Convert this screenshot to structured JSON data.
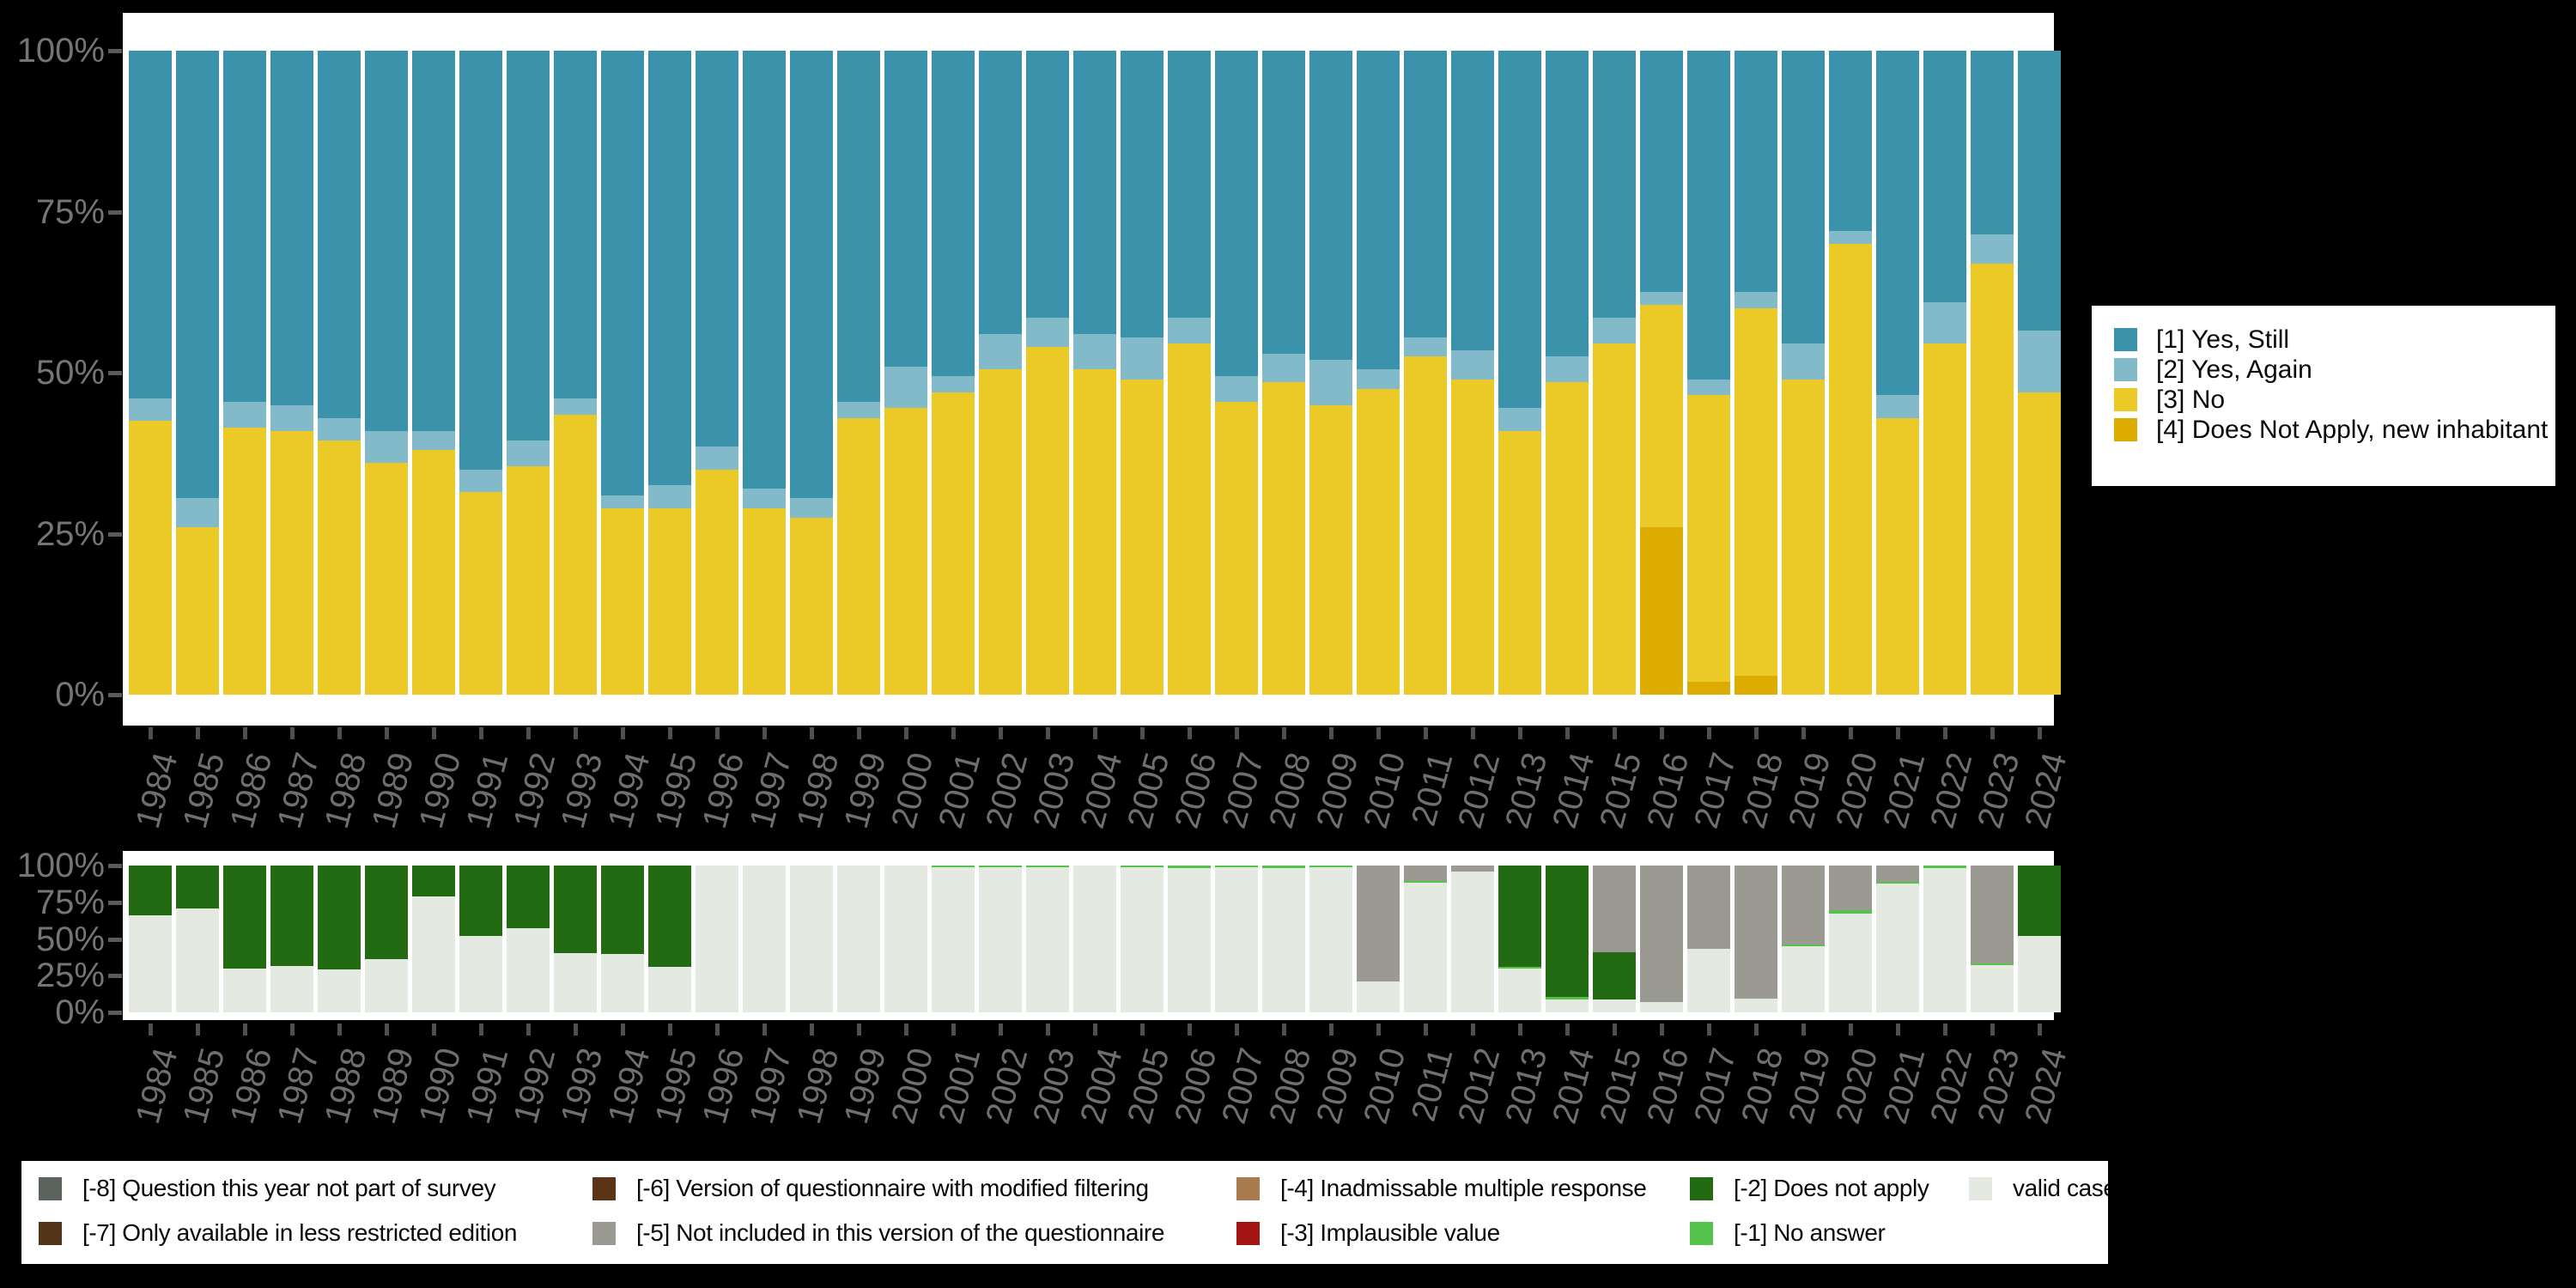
{
  "page": {
    "background": "#000000",
    "panel_background": "#ffffff"
  },
  "axis": {
    "y_tick_labels": [
      "0%",
      "25%",
      "50%",
      "75%",
      "100%"
    ],
    "y_tick_values": [
      0,
      25,
      50,
      75,
      100
    ],
    "tick_color": "#4f4f4f",
    "label_color": "#757575"
  },
  "chart_data": [
    {
      "type": "bar",
      "stacked": true,
      "title": "",
      "xlabel": "",
      "ylabel": "",
      "ylim": [
        0,
        100
      ],
      "grid": false,
      "legend_position": "right",
      "categories": [
        1984,
        1985,
        1986,
        1987,
        1988,
        1989,
        1990,
        1991,
        1992,
        1993,
        1994,
        1995,
        1996,
        1997,
        1998,
        1999,
        2000,
        2001,
        2002,
        2003,
        2004,
        2005,
        2006,
        2007,
        2008,
        2009,
        2010,
        2011,
        2012,
        2013,
        2014,
        2015,
        2016,
        2017,
        2018,
        2019,
        2020,
        2021,
        2022,
        2023,
        2024
      ],
      "series": [
        {
          "key": "does_not_apply_new",
          "name": "[4] Does Not Apply, new inhabitant",
          "color": "#DCAD00",
          "values": [
            0,
            0,
            0,
            0,
            0,
            0,
            0,
            0,
            0,
            0,
            0,
            0,
            0,
            0,
            0,
            0,
            0,
            0,
            0,
            0,
            0,
            0,
            0,
            0,
            0,
            0,
            0,
            0,
            0,
            0,
            0,
            0,
            26,
            2,
            3,
            0,
            0,
            0,
            0,
            0,
            0
          ]
        },
        {
          "key": "no",
          "name": "[3] No",
          "color": "#EBC927",
          "values": [
            42.5,
            26,
            41.5,
            41,
            39.5,
            36,
            38,
            31.5,
            35.5,
            43.5,
            29,
            29,
            35,
            29,
            27.5,
            43,
            44.5,
            47,
            50.5,
            54,
            50.5,
            49,
            54.5,
            45.5,
            48.5,
            45,
            47.5,
            52.5,
            49,
            41,
            48.5,
            54.5,
            34.5,
            44.5,
            57,
            49,
            70,
            43,
            54.5,
            67,
            47
          ]
        },
        {
          "key": "yes_again",
          "name": "[2] Yes, Again",
          "color": "#82BACA",
          "values": [
            3.5,
            4.5,
            4,
            4,
            3.5,
            5,
            3,
            3.5,
            4,
            2.5,
            2,
            3.5,
            3.5,
            3,
            3,
            2.5,
            6.5,
            2.5,
            5.5,
            4.5,
            5.5,
            6.5,
            4,
            4,
            4.5,
            7,
            3,
            3,
            4.5,
            3.5,
            4,
            4,
            2,
            2.5,
            2.5,
            5.5,
            2,
            3.5,
            6.5,
            4.5,
            9.5
          ]
        },
        {
          "key": "yes_still",
          "name": "[1] Yes, Still",
          "color": "#3B93AB",
          "values": [
            54,
            69.5,
            54.5,
            55,
            57,
            59,
            59,
            65,
            60.5,
            54,
            69,
            67.5,
            61.5,
            68,
            69.5,
            54.5,
            49,
            50.5,
            44,
            41.5,
            44,
            44.5,
            41.5,
            50.5,
            47,
            48,
            49.5,
            44.5,
            46.5,
            55.5,
            47.5,
            41.5,
            37.5,
            51,
            37.5,
            45.5,
            28,
            53.5,
            39,
            28.5,
            43.5
          ]
        }
      ],
      "legend": [
        {
          "label": "[1] Yes, Still",
          "color": "#3B93AB"
        },
        {
          "label": "[2] Yes, Again",
          "color": "#82BACA"
        },
        {
          "label": "[3] No",
          "color": "#EBC927"
        },
        {
          "label": "[4] Does Not Apply, new inhabitant",
          "color": "#DCAD00"
        }
      ]
    },
    {
      "type": "bar",
      "stacked": true,
      "title": "",
      "xlabel": "",
      "ylabel": "",
      "ylim": [
        0,
        100
      ],
      "grid": false,
      "legend_position": "bottom",
      "categories": [
        1984,
        1985,
        1986,
        1987,
        1988,
        1989,
        1990,
        1991,
        1992,
        1993,
        1994,
        1995,
        1996,
        1997,
        1998,
        1999,
        2000,
        2001,
        2002,
        2003,
        2004,
        2005,
        2006,
        2007,
        2008,
        2009,
        2010,
        2011,
        2012,
        2013,
        2014,
        2015,
        2016,
        2017,
        2018,
        2019,
        2020,
        2021,
        2022,
        2023,
        2024
      ],
      "series": [
        {
          "key": "valid_cases",
          "name": "valid cases",
          "color": "#E4E9E1",
          "values": [
            66,
            71,
            30,
            31.5,
            29.5,
            36,
            79,
            52,
            57.5,
            40.5,
            40,
            31,
            100,
            100,
            100,
            100,
            100,
            99,
            99,
            99,
            100,
            99,
            98,
            99,
            98.5,
            99,
            21,
            88.5,
            96,
            30,
            9,
            9,
            7,
            43.5,
            9.5,
            45,
            67,
            87.5,
            98.5,
            32,
            52
          ]
        },
        {
          "key": "no_answer",
          "name": "[-1] No answer",
          "color": "#55C24B",
          "values": [
            0,
            0,
            0,
            0,
            0,
            0,
            0,
            0,
            0,
            0,
            0,
            0,
            0,
            0,
            0,
            0,
            0,
            1,
            1,
            1,
            0,
            1,
            2,
            1,
            1.5,
            1,
            0,
            1,
            0,
            1,
            1.5,
            0,
            0,
            0,
            0,
            1.5,
            2.5,
            1.5,
            1.5,
            1.5,
            0
          ]
        },
        {
          "key": "does_not_apply",
          "name": "[-2] Does not apply",
          "color": "#226B12",
          "values": [
            34,
            29,
            70,
            68.5,
            70.5,
            64,
            21,
            48,
            42.5,
            59.5,
            60,
            69,
            0,
            0,
            0,
            0,
            0,
            0,
            0,
            0,
            0,
            0,
            0,
            0,
            0,
            0,
            0,
            0,
            0,
            69,
            89.5,
            32,
            0,
            0,
            0,
            0,
            0,
            0,
            0,
            0,
            48
          ]
        },
        {
          "key": "not_included",
          "name": "[-5] Not included in this version of the questionnaire",
          "color": "#9A9A93",
          "values": [
            0,
            0,
            0,
            0,
            0,
            0,
            0,
            0,
            0,
            0,
            0,
            0,
            0,
            0,
            0,
            0,
            0,
            0,
            0,
            0,
            0,
            0,
            0,
            0,
            0,
            0,
            79,
            10.5,
            4,
            0,
            0,
            59,
            93,
            56.5,
            90.5,
            53.5,
            30.5,
            11,
            0,
            66.5,
            0
          ]
        }
      ],
      "legend": [
        {
          "label": "[-8] Question this year not part of survey",
          "color": "#5A635C"
        },
        {
          "label": "[-7] Only available in less restricted edition",
          "color": "#523419"
        },
        {
          "label": "[-6] Version of questionnaire with modified filtering",
          "color": "#5B3418"
        },
        {
          "label": "[-5] Not included in this version of the questionnaire",
          "color": "#9A9A93"
        },
        {
          "label": "[-4] Inadmissable multiple response",
          "color": "#A87C4F"
        },
        {
          "label": "[-3] Implausible value",
          "color": "#A31512"
        },
        {
          "label": "[-2] Does not apply",
          "color": "#226B12"
        },
        {
          "label": "[-1] No answer",
          "color": "#55C24B"
        },
        {
          "label": "valid cases",
          "color": "#E4E9E1"
        }
      ]
    }
  ]
}
